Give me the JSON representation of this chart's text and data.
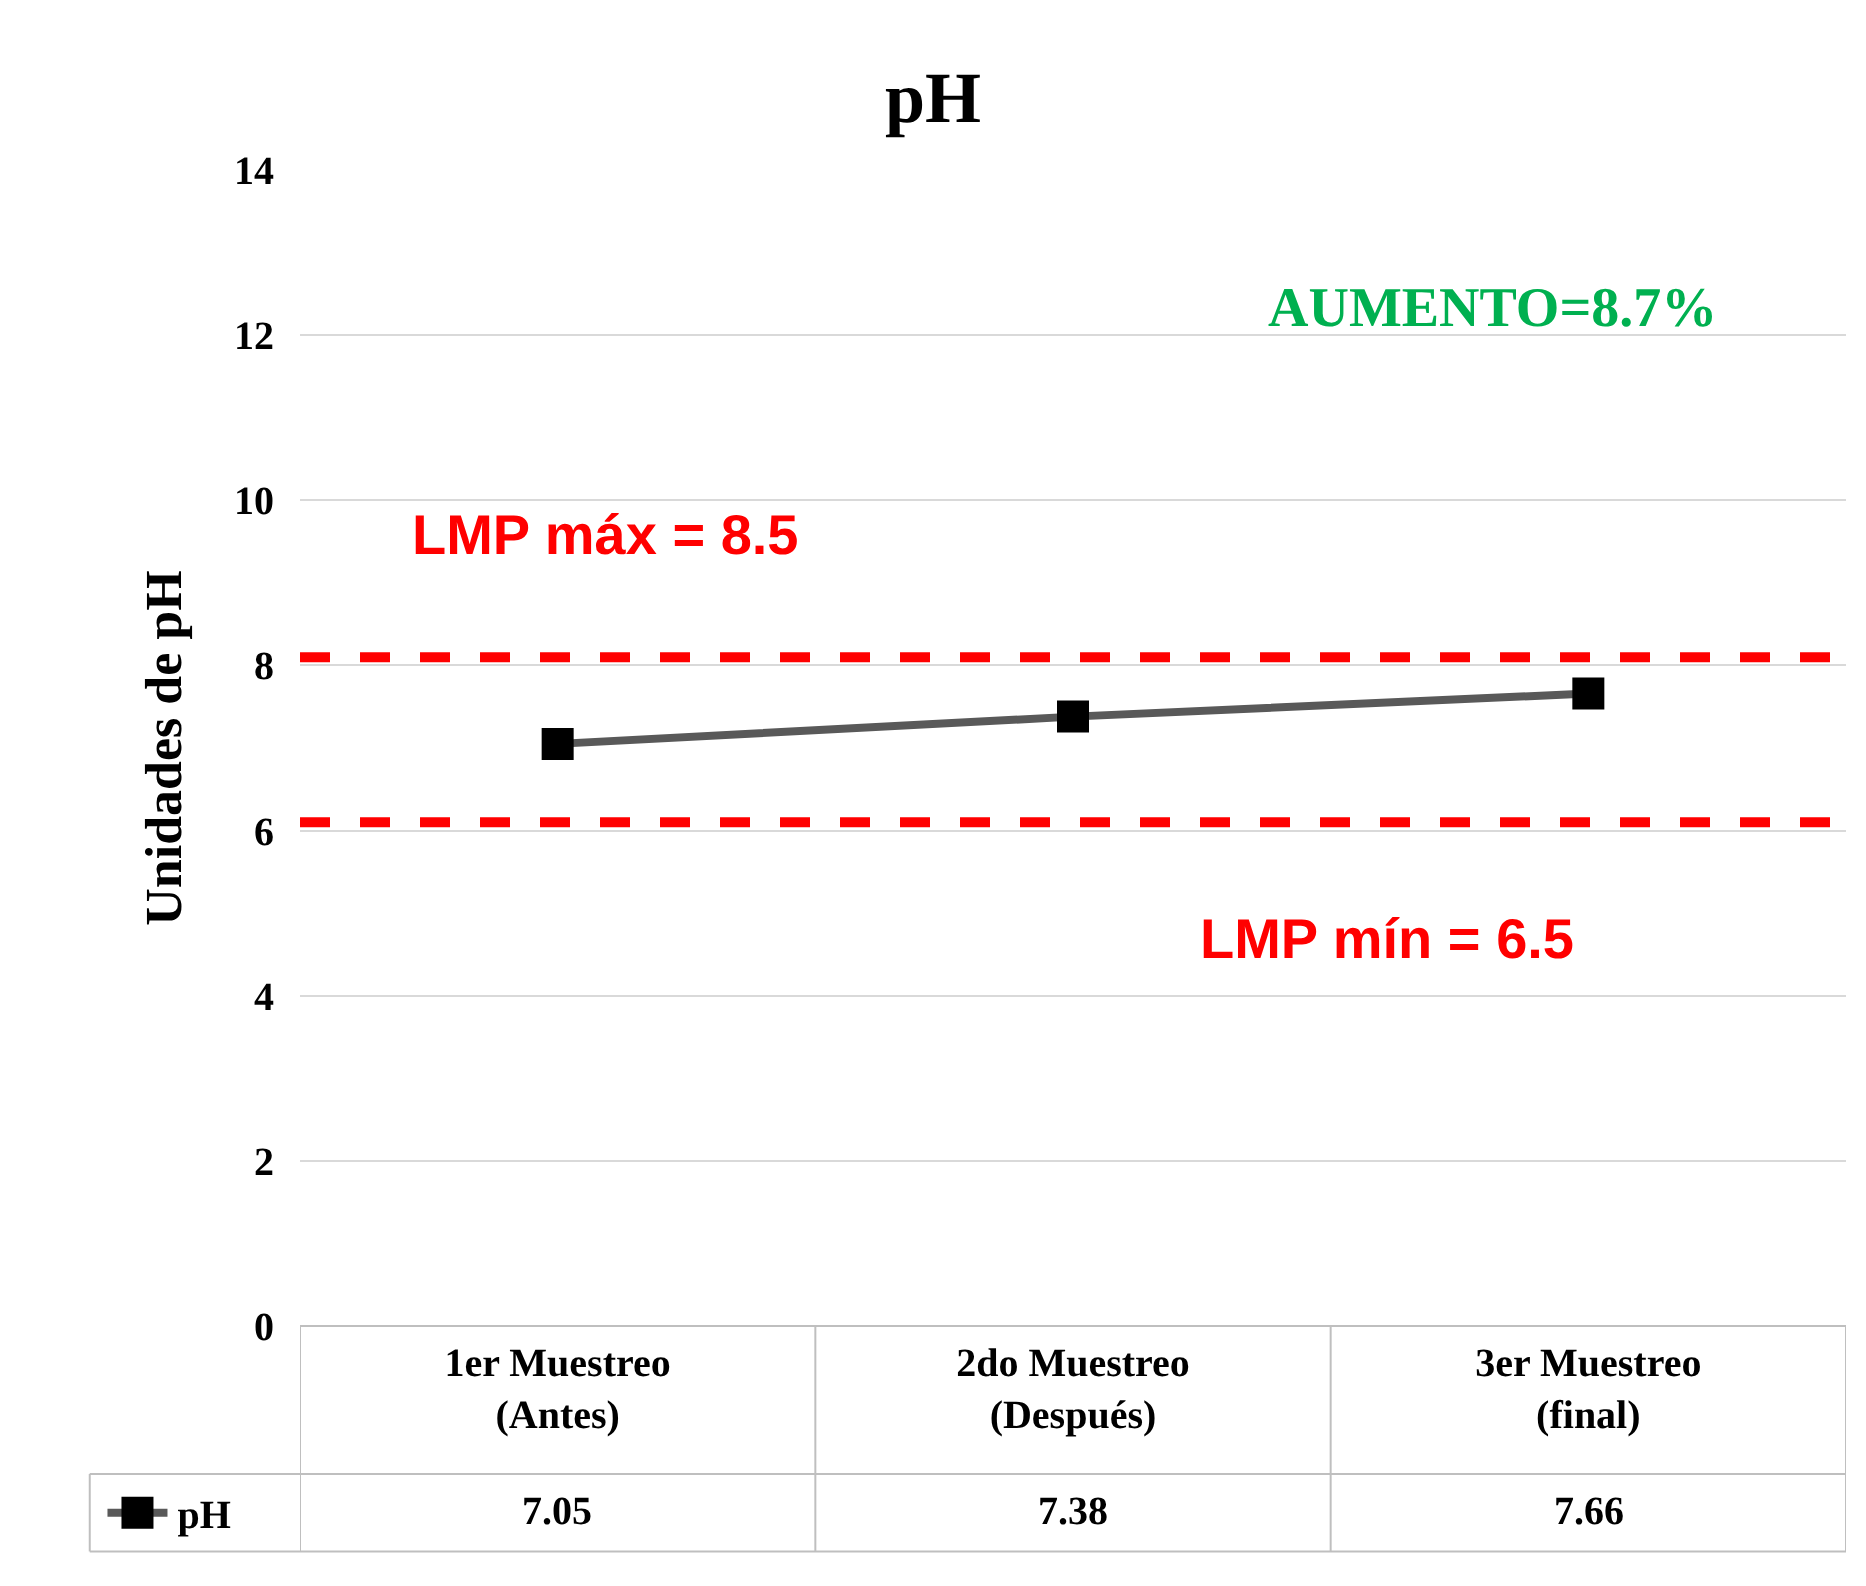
{
  "chart_data": {
    "type": "line",
    "title": "pH",
    "ylabel": "Unidades de pH",
    "categories": [
      "1er Muestreo (Antes)",
      "2do Muestreo (Después)",
      "3er Muestreo (final)"
    ],
    "series": [
      {
        "name": "pH",
        "color": "#595959",
        "values": [
          7.05,
          7.38,
          7.66
        ]
      }
    ],
    "ylim": [
      0,
      14
    ],
    "yticks": [
      0,
      2,
      4,
      6,
      8,
      10,
      12,
      14
    ],
    "grid": "y",
    "marker": "square",
    "line_style": "solid",
    "legend": "bottom left",
    "data_labels": true,
    "ref_lines": [
      {
        "axis": "y",
        "value": 8.1,
        "color": "#ff0000",
        "line_style": "dashed"
      },
      {
        "axis": "y",
        "value": 6.1,
        "color": "#ff0000",
        "line_style": "dashed"
      }
    ],
    "annotations": [
      "AUMENTO=8.7%",
      "LMP máx = 8.5",
      "LMP mín = 6.5"
    ]
  }
}
